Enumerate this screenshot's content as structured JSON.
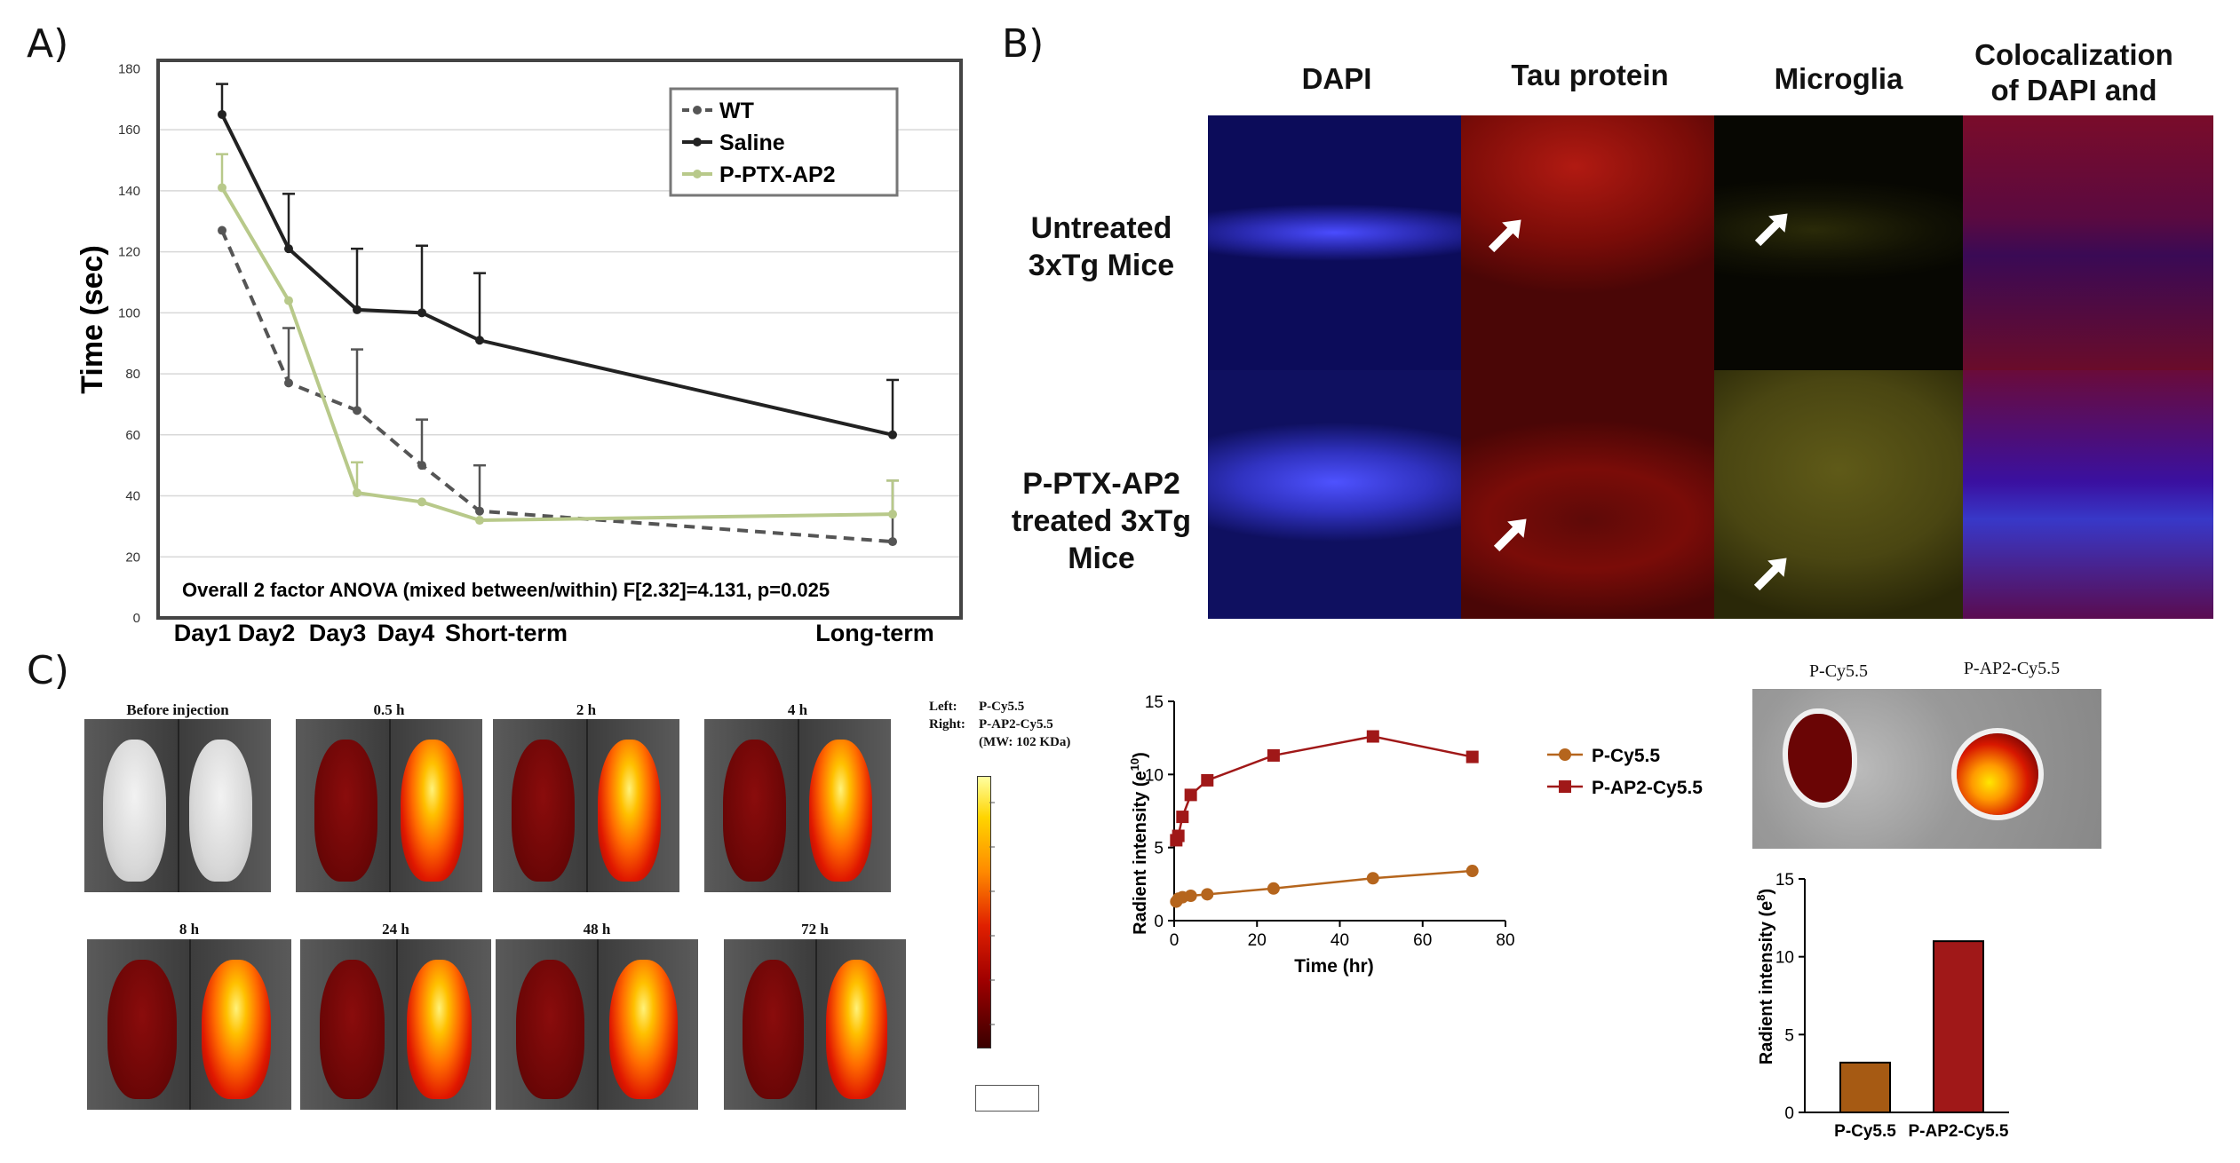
{
  "panels": {
    "A": {
      "letter": "A)",
      "chart_data": {
        "type": "line",
        "xlabel": "",
        "ylabel": "Time (sec)",
        "categories": [
          "Day1",
          "Day2",
          "Day3",
          "Day4",
          "Short-term",
          "Long-term"
        ],
        "ylim": [
          0,
          180
        ],
        "yticks": [
          "0",
          "20",
          "40",
          "60",
          "80",
          "100",
          "120",
          "140",
          "160",
          "180"
        ],
        "grid": true,
        "legend_position": "top-right",
        "annotation": "Overall 2 factor ANOVA (mixed between/within) F[2.32]=4.131, p=0.025",
        "series": [
          {
            "name": "WT",
            "color": "#555555",
            "style": "dashed",
            "values": [
              127,
              77,
              68,
              50,
              35,
              25
            ],
            "errors": [
              0,
              18,
              20,
              15,
              15,
              20
            ]
          },
          {
            "name": "Saline",
            "color": "#222222",
            "style": "solid",
            "values": [
              165,
              121,
              101,
              100,
              91,
              60
            ],
            "errors": [
              10,
              18,
              20,
              22,
              22,
              18
            ]
          },
          {
            "name": "P-PTX-AP2",
            "color": "#b8c98a",
            "style": "solid",
            "values": [
              141,
              104,
              41,
              38,
              32,
              34
            ],
            "errors": [
              11,
              0,
              10,
              0,
              0,
              11
            ]
          }
        ]
      }
    },
    "B": {
      "letter": "B)",
      "column_headers": [
        "DAPI",
        "Tau protein",
        "Microglia",
        "Colocalization of DAPI and Tau"
      ],
      "row_labels": [
        "Untreated 3xTg Mice",
        "P-PTX-AP2 treated 3xTg Mice"
      ]
    },
    "C": {
      "letter": "C)",
      "imaging_labels": [
        "Before injection",
        "0.5 h",
        "2 h",
        "4 h",
        "8 h",
        "24 h",
        "48 h",
        "72 h"
      ],
      "legend_left_key": "Left:",
      "legend_left_val": "P-Cy5.5",
      "legend_right_key": "Right:",
      "legend_right_val": "P-AP2-Cy5.5",
      "legend_mw": "(MW: 102 KDa)",
      "line_chart": {
        "chart_data": {
          "type": "line",
          "xlabel": "Time (hr)",
          "ylabel": "Radient intensity (e",
          "ylabel_sup": "10",
          "xlim": [
            0,
            80
          ],
          "ylim": [
            0,
            15
          ],
          "xticks": [
            "0",
            "20",
            "40",
            "60",
            "80"
          ],
          "yticks": [
            "0",
            "5",
            "10",
            "15"
          ],
          "series": [
            {
              "name": "P-Cy5.5",
              "color": "#b5651d",
              "marker": "circle",
              "x": [
                0.5,
                1,
                2,
                4,
                8,
                24,
                48,
                72
              ],
              "y": [
                1.3,
                1.5,
                1.6,
                1.7,
                1.8,
                2.2,
                2.9,
                3.4
              ]
            },
            {
              "name": "P-AP2-Cy5.5",
              "color": "#a01818",
              "marker": "square",
              "x": [
                0.5,
                1,
                2,
                4,
                8,
                24,
                48,
                72
              ],
              "y": [
                5.5,
                5.8,
                7.1,
                8.6,
                9.6,
                11.3,
                12.6,
                11.2
              ]
            }
          ]
        }
      },
      "organ_labels": [
        "P-Cy5.5",
        "P-AP2-Cy5.5"
      ],
      "bar_chart": {
        "chart_data": {
          "type": "bar",
          "categories": [
            "P-Cy5.5",
            "P-AP2-Cy5.5"
          ],
          "values": [
            3.2,
            11.0
          ],
          "colors": [
            "#a65a13",
            "#a01818"
          ],
          "ylabel": "Radient intensity (e",
          "ylabel_sup": "8",
          "ylim": [
            0,
            15
          ],
          "yticks": [
            "0",
            "5",
            "10",
            "15"
          ]
        }
      }
    }
  }
}
